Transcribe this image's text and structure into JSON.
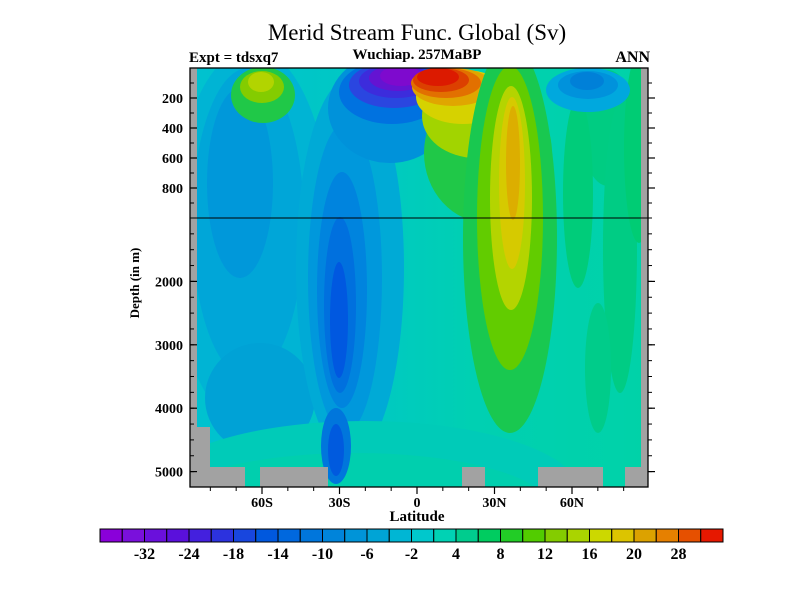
{
  "header": {
    "title": "Merid Stream Func. Global (Sv)",
    "experiment": "Expt = tdsxq7",
    "period": "Wuchiap. 257MaBP",
    "season": "ANN"
  },
  "axes": {
    "x": {
      "label": "Latitude",
      "minor_step_deg": 10,
      "minor_range_deg": [
        -80,
        80
      ],
      "major_ticks": [
        {
          "v": -60,
          "label": "60S"
        },
        {
          "v": -30,
          "label": "30S"
        },
        {
          "v": 0,
          "label": "0"
        },
        {
          "v": 30,
          "label": "30N"
        },
        {
          "v": 60,
          "label": "60N"
        }
      ]
    },
    "y": {
      "label": "Depth (in m)",
      "scale_break_depth_m": 1000,
      "upper_minor_step_m": 100,
      "lower_minor_step_m": 250,
      "major_ticks_upper": [
        {
          "v": 200,
          "label": "200"
        },
        {
          "v": 400,
          "label": "400"
        },
        {
          "v": 600,
          "label": "600"
        },
        {
          "v": 800,
          "label": "800"
        }
      ],
      "major_ticks_lower": [
        {
          "v": 2000,
          "label": "2000"
        },
        {
          "v": 3000,
          "label": "3000"
        },
        {
          "v": 4000,
          "label": "4000"
        },
        {
          "v": 5000,
          "label": "5000"
        }
      ]
    }
  },
  "colorbar": {
    "n_segments": 28,
    "segment_colors": [
      "#8a00da",
      "#7a10dc",
      "#6a10dc",
      "#5a10dc",
      "#4420de",
      "#2c32de",
      "#1846de",
      "#0058de",
      "#0068de",
      "#0076dc",
      "#0084da",
      "#0094d8",
      "#00a4d6",
      "#00b6d4",
      "#00c8cc",
      "#00d2b4",
      "#00cc8e",
      "#00cc60",
      "#22cc26",
      "#52cc00",
      "#84cc00",
      "#aad400",
      "#ccd800",
      "#dcc400",
      "#dca200",
      "#e68000",
      "#e65000",
      "#e61800"
    ],
    "tick_labels": [
      "-32",
      "-24",
      "-18",
      "-14",
      "-10",
      "-6",
      "-2",
      "4",
      "8",
      "12",
      "16",
      "20",
      "28"
    ],
    "labeled_boundary_indices": [
      2,
      4,
      6,
      8,
      10,
      12,
      14,
      16,
      18,
      20,
      22,
      24,
      26
    ]
  },
  "chart_data": {
    "type": "heatmap",
    "subtype": "filled-contour latitude-depth section",
    "title": "Merid Stream Func. Global (Sv)",
    "annotations": [
      "Expt = tdsxq7",
      "Wuchiap. 257MaBP",
      "ANN"
    ],
    "xlabel": "Latitude",
    "ylabel": "Depth (in m)",
    "units": "Sv",
    "x_range_deg": [
      -88,
      89
    ],
    "x_tick_labels": [
      "60S",
      "30S",
      "0",
      "30N",
      "60N"
    ],
    "y_axis_split": {
      "upper_range_m": [
        0,
        1000
      ],
      "lower_range_m": [
        1000,
        5250
      ],
      "upper_tick_labels": [
        200,
        400,
        600,
        800
      ],
      "lower_tick_labels": [
        2000,
        3000,
        4000,
        5000
      ],
      "break_line_depth_m": 1000
    },
    "contour_levels": [
      -36,
      -32,
      -28,
      -24,
      -21,
      -18,
      -16,
      -14,
      -12,
      -10,
      -8,
      -6,
      -4,
      -2,
      2,
      4,
      6,
      8,
      10,
      12,
      14,
      16,
      18,
      20,
      24,
      28,
      32
    ],
    "colorbar_labeled_levels": [
      -32,
      -24,
      -18,
      -14,
      -10,
      -6,
      -2,
      4,
      8,
      12,
      16,
      20,
      28
    ],
    "features": [
      {
        "name": "southern-surface-positive-cell",
        "lat": "65S-55S",
        "depth_m": "0-300",
        "value_sv": "8 to 12",
        "color": "yellow-green core"
      },
      {
        "name": "equatorial-surface-negative-cell",
        "lat": "15S-0",
        "depth_m": "0-250",
        "value_sv": "-36 to -24",
        "color": "purple core with dark blue rings"
      },
      {
        "name": "equatorial-surface-positive-cell",
        "lat": "0-20N",
        "depth_m": "0-250",
        "value_sv": "24 to 32",
        "color": "red core with orange/yellow rings"
      },
      {
        "name": "north-subtropical-positive-column",
        "lat": "25N-35N",
        "depth_m": "200-4200",
        "value_sv": "8 to 18",
        "color": "gold core in yellow/green column"
      },
      {
        "name": "southern-mid-depth-negative-cell",
        "lat": "35S-25S",
        "depth_m": "500-4700",
        "value_sv": "-10 to -16",
        "color": "dark blue core"
      },
      {
        "name": "high-southern-negative-region",
        "lat": "85S-40S",
        "depth_m": "0-4000",
        "value_sv": "-4 to -10",
        "color": "broad blue columns"
      },
      {
        "name": "northern-surface-negative-patch",
        "lat": "50N-70N",
        "depth_m": "0-200",
        "value_sv": "-6 to -10",
        "color": "blue patch"
      },
      {
        "name": "high-northern-positive-bands",
        "lat": "40N-85N",
        "depth_m": "0-3500",
        "value_sv": "4 to 8",
        "color": "green vertical bands"
      },
      {
        "name": "abyssal-background",
        "lat": "global",
        "depth_m": "4300-5250",
        "value_sv": "-2 to 4",
        "color": "cyan/teal"
      },
      {
        "name": "bathymetry-mask",
        "note": "gray blocks: left edge staircase, right edge column, bottom blocks near 55S, 15S-5S, 25N, 50N-65N"
      }
    ],
    "reference_line": {
      "depth_m": 1000,
      "style": "thin black horizontal line across plot"
    },
    "legend_position": "horizontal colorbar below plot",
    "grid": false
  }
}
